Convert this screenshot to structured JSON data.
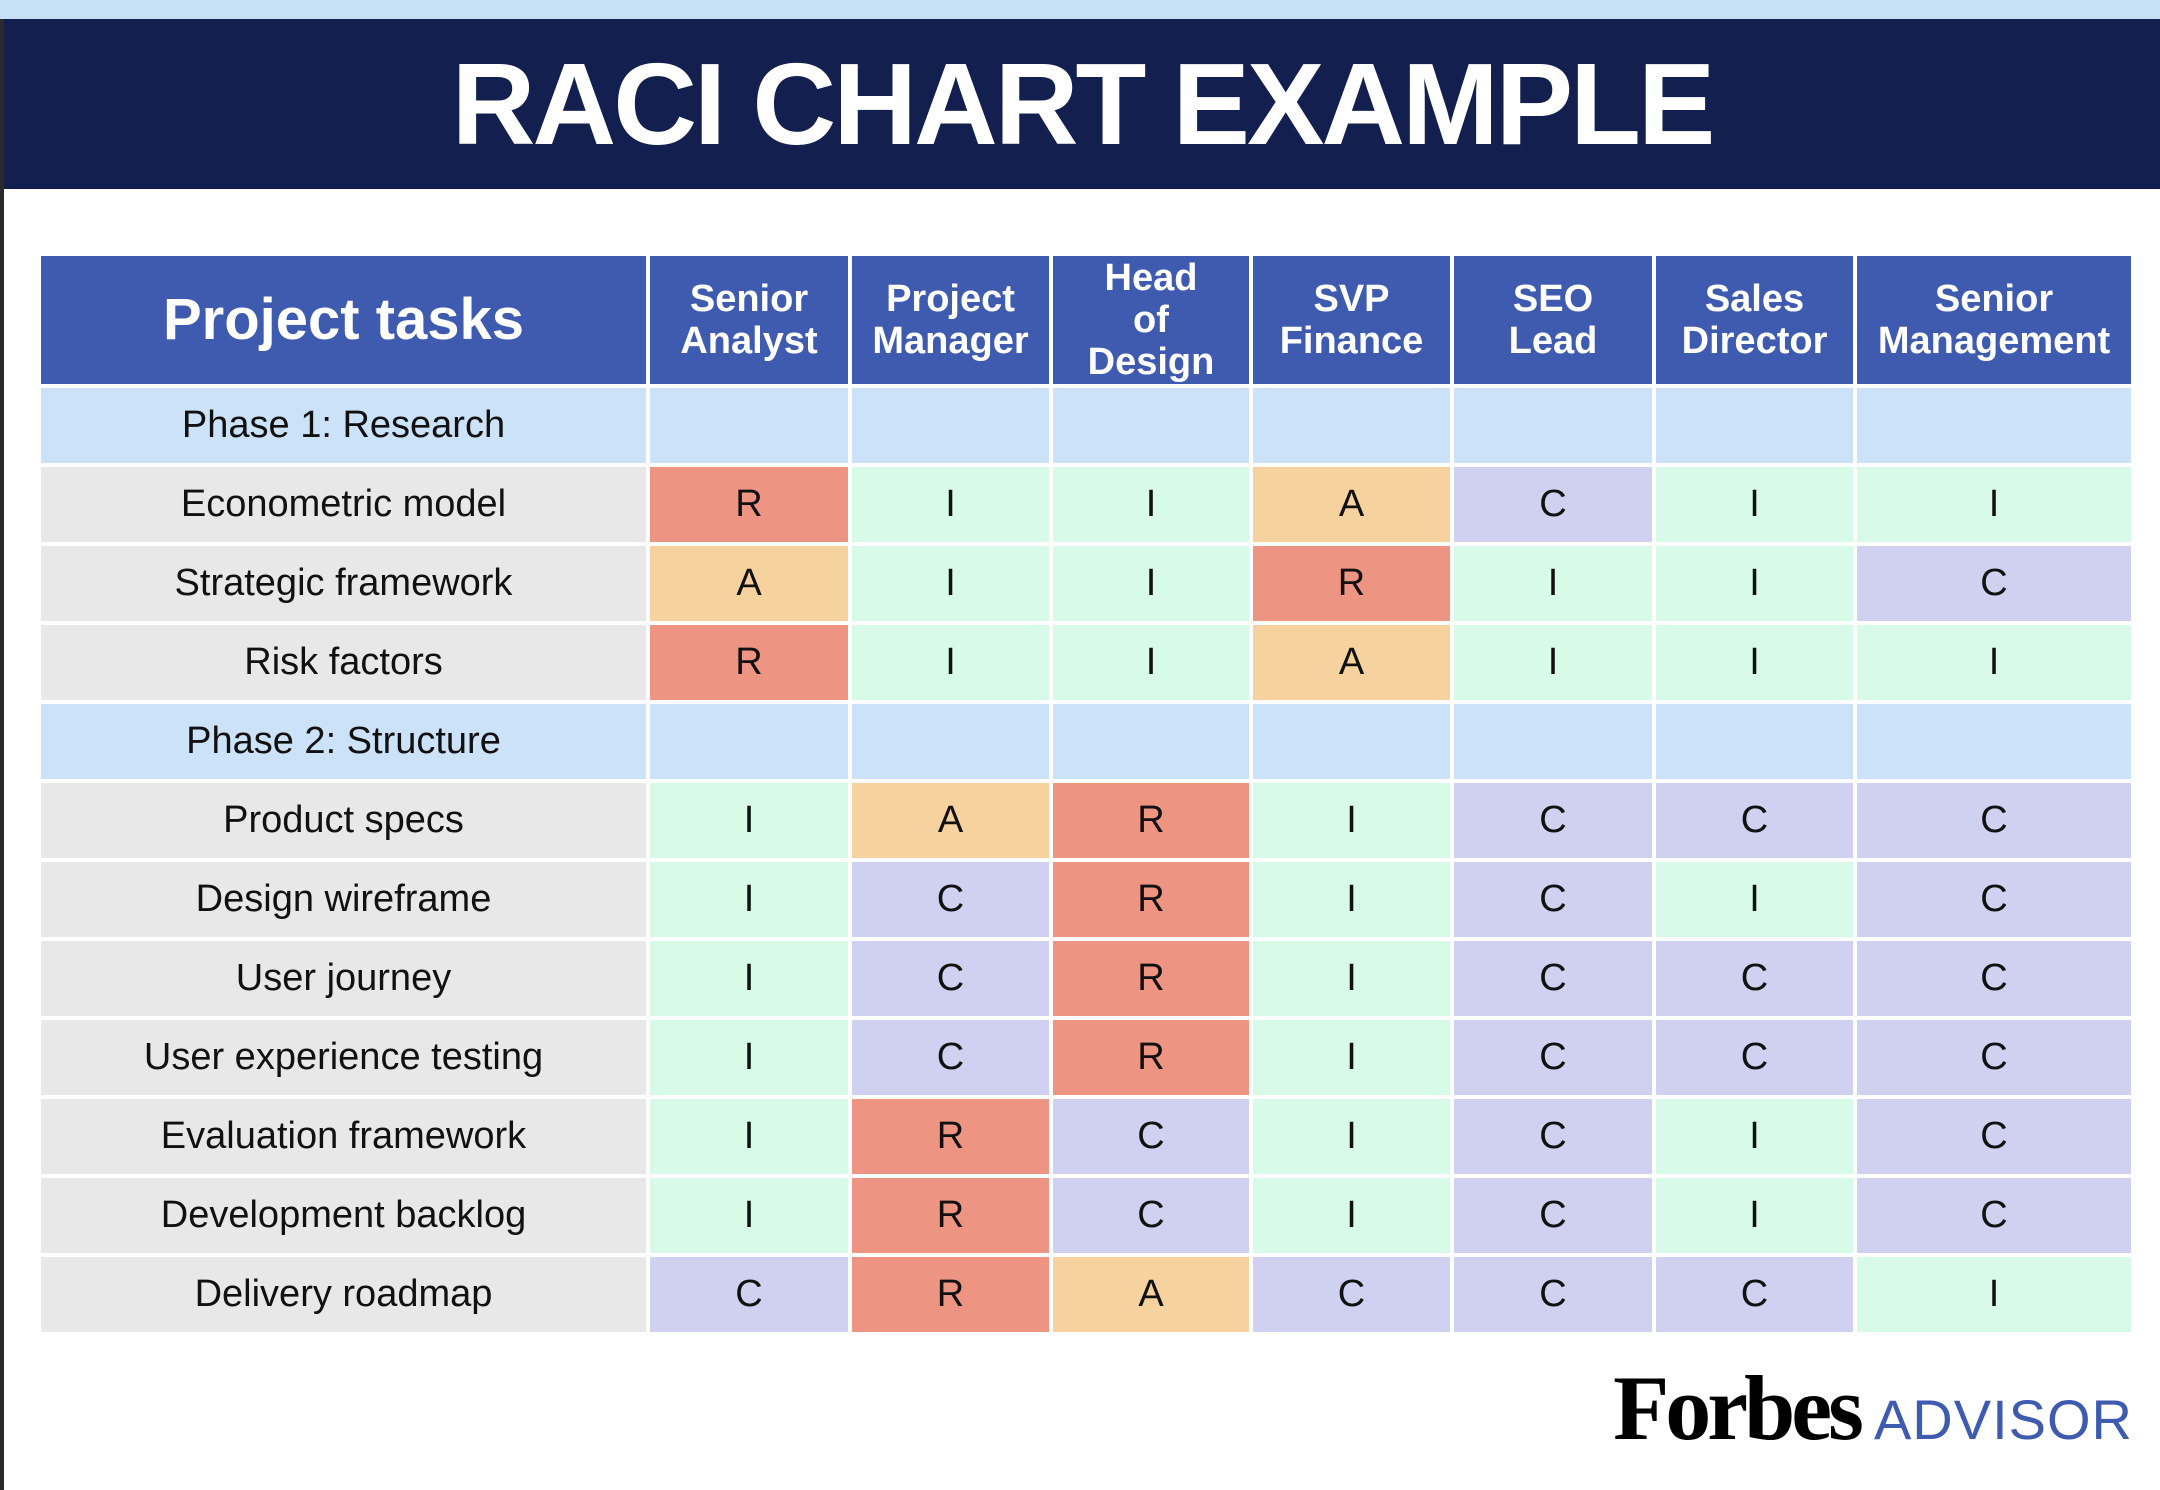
{
  "header": {
    "title": "RACI CHART EXAMPLE"
  },
  "table": {
    "columns": [
      "Project tasks",
      "Senior Analyst",
      "Project Manager",
      "Head of Design",
      "SVP Finance",
      "SEO Lead",
      "Sales Director",
      "Senior Management"
    ],
    "phases": [
      {
        "title": "Phase 1: Research",
        "tasks": [
          {
            "name": "Econometric model",
            "roles": [
              "R",
              "I",
              "I",
              "A",
              "C",
              "I",
              "I"
            ]
          },
          {
            "name": "Strategic framework",
            "roles": [
              "A",
              "I",
              "I",
              "R",
              "I",
              "I",
              "C"
            ]
          },
          {
            "name": "Risk factors",
            "roles": [
              "R",
              "I",
              "I",
              "A",
              "I",
              "I",
              "I"
            ]
          }
        ]
      },
      {
        "title": "Phase 2: Structure",
        "tasks": [
          {
            "name": "Product specs",
            "roles": [
              "I",
              "A",
              "R",
              "I",
              "C",
              "C",
              "C"
            ]
          },
          {
            "name": "Design wireframe",
            "roles": [
              "I",
              "C",
              "R",
              "I",
              "C",
              "I",
              "C"
            ]
          },
          {
            "name": "User journey",
            "roles": [
              "I",
              "C",
              "R",
              "I",
              "C",
              "C",
              "C"
            ]
          },
          {
            "name": "User experience testing",
            "roles": [
              "I",
              "C",
              "R",
              "I",
              "C",
              "C",
              "C"
            ]
          },
          {
            "name": "Evaluation framework",
            "roles": [
              "I",
              "R",
              "C",
              "I",
              "C",
              "I",
              "C"
            ]
          },
          {
            "name": "Development backlog",
            "roles": [
              "I",
              "R",
              "C",
              "I",
              "C",
              "I",
              "C"
            ]
          },
          {
            "name": "Delivery roadmap",
            "roles": [
              "C",
              "R",
              "A",
              "C",
              "C",
              "C",
              "I"
            ]
          }
        ]
      }
    ]
  },
  "logo": {
    "brand": "Forbes",
    "product": "ADVISOR"
  }
}
